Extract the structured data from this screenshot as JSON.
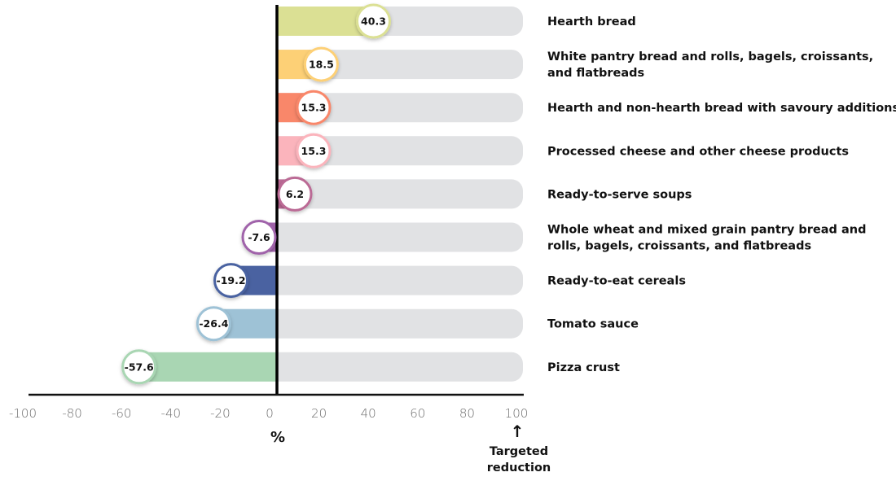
{
  "chart_data": {
    "type": "bar",
    "orientation": "horizontal",
    "title": "",
    "xlabel": "%",
    "ylabel": "",
    "xlim": [
      -100,
      100
    ],
    "xticks": [
      -100,
      -80,
      -60,
      -40,
      -20,
      0,
      20,
      40,
      60,
      80,
      100
    ],
    "grid": false,
    "target_value": 100,
    "annotation": {
      "arrow": "↑",
      "lines": [
        "Targeted",
        "reduction"
      ]
    },
    "categories": [
      [
        "Hearth bread"
      ],
      [
        "White pantry bread and rolls, bagels, croissants,",
        "and flatbreads"
      ],
      [
        "Hearth and non-hearth bread with savoury additions"
      ],
      [
        "Processed cheese and other cheese products"
      ],
      [
        "Ready-to-serve soups"
      ],
      [
        "Whole wheat and mixed grain pantry bread and",
        "rolls, bagels, croissants, and flatbreads"
      ],
      [
        "Ready-to-eat cereals"
      ],
      [
        "Tomato sauce"
      ],
      [
        "Pizza crust"
      ]
    ],
    "values": [
      40.3,
      18.5,
      15.3,
      15.3,
      6.2,
      -7.6,
      -19.2,
      -26.4,
      -57.6
    ],
    "value_labels": [
      "40.3",
      "18.5",
      "15.3",
      "15.3",
      "6.2",
      "-7.6",
      "-19.2",
      "-26.4",
      "-57.6"
    ],
    "colors": [
      "#dbe094",
      "#fdd076",
      "#f9876a",
      "#fbb4bc",
      "#bb6a95",
      "#a063aa",
      "#4a62a1",
      "#9ec2d6",
      "#a9d6b3"
    ],
    "track_color": "#e1e2e4"
  }
}
